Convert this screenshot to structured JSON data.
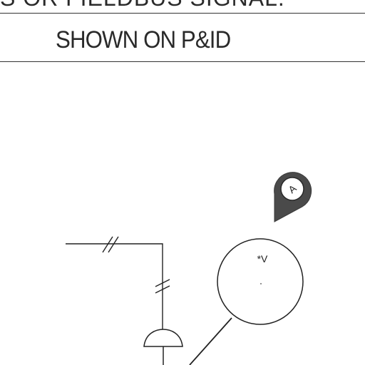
{
  "header": {
    "top_text": "S OR FIELDBUS SIGNAL.",
    "bottom_text": "SHOWN ON P&ID"
  },
  "diagram": {
    "instrument_tag": "*V",
    "callout_label": "A",
    "stroke_color": "#222222",
    "callout_fill": "#4a4a4a"
  }
}
